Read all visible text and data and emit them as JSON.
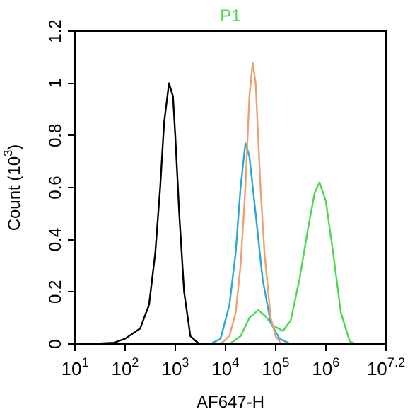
{
  "chart_data": {
    "type": "line",
    "title": "P1",
    "xlabel": "AF647-H",
    "ylabel": "Count (10$^{3}$)",
    "log": "x",
    "marker": "none",
    "grid": false,
    "xlim": [
      10,
      15848932
    ],
    "xticks": [
      {
        "value": 10,
        "label": "10$^{1}$"
      },
      {
        "value": 100,
        "label": "10$^{2}$"
      },
      {
        "value": 1000,
        "label": "10$^{3}$"
      },
      {
        "value": 10000,
        "label": "10$^{4}$"
      },
      {
        "value": 100000,
        "label": "10$^{5}$"
      },
      {
        "value": 1000000,
        "label": "10$^{6}$"
      },
      {
        "value": 15848932,
        "label": "10$^{7.2}$"
      }
    ],
    "ylim": [
      0,
      1.2
    ],
    "yticks": [
      0,
      0.2,
      0.4,
      0.6,
      0.8,
      1,
      1.2
    ],
    "series": [
      {
        "color": "#000000",
        "x": [
          20,
          60,
          100,
          200,
          300,
          400,
          500,
          600,
          750,
          900,
          1000,
          1200,
          1500,
          2000,
          3000
        ],
        "values": [
          0,
          0.005,
          0.02,
          0.06,
          0.15,
          0.35,
          0.6,
          0.85,
          1.0,
          0.95,
          0.8,
          0.5,
          0.2,
          0.03,
          0
        ]
      },
      {
        "color": "#f0a070",
        "x": [
          8000,
          12000,
          16000,
          20000,
          25000,
          30000,
          35000,
          40000,
          50000,
          60000,
          80000,
          100000,
          130000
        ],
        "values": [
          0,
          0.03,
          0.12,
          0.3,
          0.6,
          0.95,
          1.08,
          1.0,
          0.6,
          0.35,
          0.1,
          0.03,
          0
        ]
      },
      {
        "color": "#2aa6d8",
        "x": [
          5000,
          8000,
          12000,
          16000,
          20000,
          25000,
          30000,
          40000,
          55000,
          80000,
          120000,
          200000
        ],
        "values": [
          0,
          0.02,
          0.15,
          0.35,
          0.6,
          0.77,
          0.72,
          0.5,
          0.25,
          0.08,
          0.02,
          0
        ]
      },
      {
        "color": "#4cd84c",
        "x": [
          12000,
          20000,
          30000,
          45000,
          60000,
          90000,
          140000,
          200000,
          300000,
          450000,
          600000,
          750000,
          1000000,
          1400000,
          2000000,
          3000000,
          4000000
        ],
        "values": [
          0,
          0.03,
          0.1,
          0.13,
          0.11,
          0.07,
          0.05,
          0.09,
          0.25,
          0.45,
          0.58,
          0.62,
          0.55,
          0.35,
          0.12,
          0.01,
          0
        ]
      }
    ]
  }
}
